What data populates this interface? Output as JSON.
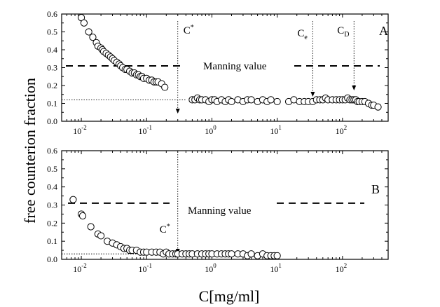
{
  "chart_data": [
    {
      "panel": "A",
      "type": "scatter",
      "x_scale": "log",
      "xlim": [
        0.005,
        500
      ],
      "ylim": [
        0.0,
        0.6
      ],
      "xlabel": "C[mg/ml]",
      "ylabel": "free counterion fraction",
      "y_ticks": [
        "0.0",
        "0.1",
        "0.2",
        "0.3",
        "0.4",
        "0.5",
        "0.6"
      ],
      "x_ticks": [
        {
          "base": "10",
          "exp": "-2"
        },
        {
          "base": "10",
          "exp": "-1"
        },
        {
          "base": "10",
          "exp": "0"
        },
        {
          "base": "10",
          "exp": "1"
        },
        {
          "base": "10",
          "exp": "2"
        }
      ],
      "manning": {
        "value": 0.31,
        "label": "Manning value"
      },
      "baseline": 0.12,
      "markers": [
        {
          "x": 0.3,
          "symbol": "C",
          "sup": "*",
          "sub": ""
        },
        {
          "x": 35,
          "symbol": "C",
          "sup": "",
          "sub": "e"
        },
        {
          "x": 150,
          "symbol": "C",
          "sup": "",
          "sub": "D"
        }
      ],
      "x": [
        0.01,
        0.011,
        0.013,
        0.015,
        0.017,
        0.018,
        0.02,
        0.021,
        0.022,
        0.024,
        0.026,
        0.028,
        0.03,
        0.032,
        0.035,
        0.038,
        0.04,
        0.043,
        0.047,
        0.05,
        0.055,
        0.06,
        0.065,
        0.07,
        0.075,
        0.08,
        0.085,
        0.09,
        0.1,
        0.11,
        0.12,
        0.13,
        0.14,
        0.15,
        0.17,
        0.19,
        0.5,
        0.55,
        0.6,
        0.65,
        0.7,
        0.8,
        0.9,
        1.0,
        1.1,
        1.2,
        1.4,
        1.6,
        1.8,
        2.0,
        2.5,
        3.0,
        3.5,
        4.0,
        5.0,
        6.0,
        7.0,
        8.0,
        10.0,
        15,
        18,
        22,
        26,
        30,
        35,
        40,
        45,
        50,
        55,
        60,
        70,
        80,
        90,
        100,
        110,
        120,
        130,
        140,
        150,
        160,
        170,
        180,
        200,
        220,
        250,
        280,
        300,
        350
      ],
      "y": [
        0.58,
        0.55,
        0.5,
        0.47,
        0.44,
        0.42,
        0.41,
        0.4,
        0.39,
        0.38,
        0.37,
        0.36,
        0.35,
        0.34,
        0.33,
        0.32,
        0.31,
        0.3,
        0.29,
        0.29,
        0.28,
        0.27,
        0.27,
        0.26,
        0.26,
        0.25,
        0.25,
        0.24,
        0.24,
        0.23,
        0.23,
        0.22,
        0.22,
        0.22,
        0.21,
        0.19,
        0.12,
        0.12,
        0.13,
        0.12,
        0.12,
        0.12,
        0.11,
        0.12,
        0.12,
        0.11,
        0.12,
        0.11,
        0.12,
        0.11,
        0.12,
        0.11,
        0.12,
        0.12,
        0.11,
        0.12,
        0.11,
        0.12,
        0.11,
        0.11,
        0.12,
        0.11,
        0.11,
        0.11,
        0.11,
        0.12,
        0.12,
        0.12,
        0.13,
        0.12,
        0.12,
        0.12,
        0.12,
        0.12,
        0.12,
        0.13,
        0.12,
        0.12,
        0.12,
        0.12,
        0.11,
        0.11,
        0.11,
        0.11,
        0.1,
        0.09,
        0.09,
        0.08
      ]
    },
    {
      "panel": "B",
      "type": "scatter",
      "x_scale": "log",
      "xlim": [
        0.005,
        500
      ],
      "ylim": [
        0.0,
        0.6
      ],
      "xlabel": "C[mg/ml]",
      "ylabel": "free counterion fraction",
      "y_ticks": [
        "0.0",
        "0.1",
        "0.2",
        "0.3",
        "0.4",
        "0.5",
        "0.6"
      ],
      "x_ticks": [
        {
          "base": "10",
          "exp": "-2"
        },
        {
          "base": "10",
          "exp": "-1"
        },
        {
          "base": "10",
          "exp": "0"
        },
        {
          "base": "10",
          "exp": "1"
        },
        {
          "base": "10",
          "exp": "2"
        }
      ],
      "manning": {
        "value": 0.31,
        "label": "Manning value"
      },
      "baseline": 0.03,
      "markers": [
        {
          "x": 0.3,
          "symbol": "C",
          "sup": "*",
          "sub": ""
        }
      ],
      "x": [
        0.0075,
        0.01,
        0.0105,
        0.014,
        0.018,
        0.02,
        0.025,
        0.03,
        0.035,
        0.04,
        0.045,
        0.05,
        0.055,
        0.06,
        0.07,
        0.08,
        0.09,
        0.1,
        0.12,
        0.14,
        0.16,
        0.18,
        0.2,
        0.22,
        0.25,
        0.28,
        0.3,
        0.35,
        0.4,
        0.45,
        0.5,
        0.6,
        0.7,
        0.8,
        0.9,
        1.0,
        1.2,
        1.4,
        1.6,
        1.8,
        2.0,
        2.5,
        3.0,
        3.5,
        4.0,
        5.0,
        6.0,
        7.0,
        8.0,
        9.0,
        10.0
      ],
      "y": [
        0.33,
        0.25,
        0.24,
        0.18,
        0.14,
        0.13,
        0.1,
        0.09,
        0.08,
        0.07,
        0.06,
        0.06,
        0.05,
        0.05,
        0.05,
        0.04,
        0.04,
        0.04,
        0.04,
        0.04,
        0.04,
        0.03,
        0.04,
        0.03,
        0.03,
        0.03,
        0.03,
        0.03,
        0.03,
        0.03,
        0.03,
        0.03,
        0.03,
        0.03,
        0.03,
        0.03,
        0.03,
        0.03,
        0.03,
        0.03,
        0.03,
        0.03,
        0.03,
        0.02,
        0.03,
        0.02,
        0.03,
        0.02,
        0.02,
        0.02,
        0.02
      ]
    }
  ]
}
